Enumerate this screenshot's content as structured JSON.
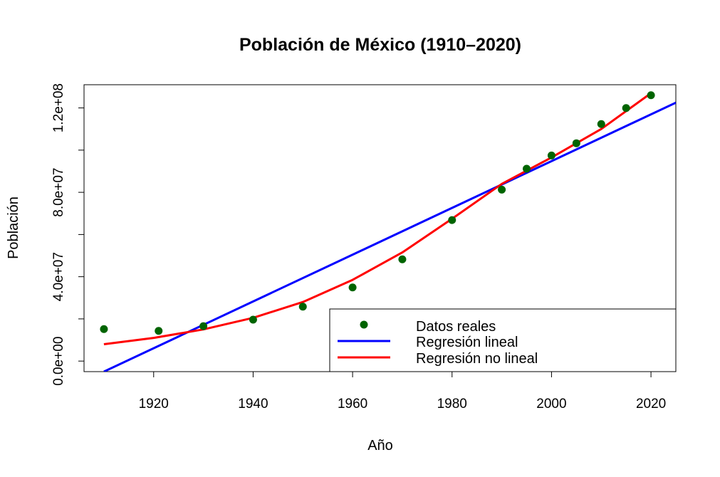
{
  "chart_data": {
    "type": "scatter",
    "title": "Población de México (1910–2020)",
    "xlabel": "Año",
    "ylabel": "Población",
    "xlim": [
      1906,
      2025
    ],
    "ylim": [
      -5000000,
      131000000
    ],
    "x_ticks": [
      1920,
      1940,
      1960,
      1980,
      2000,
      2020
    ],
    "x_tick_labels": [
      "1920",
      "1940",
      "1960",
      "1980",
      "2000",
      "2020"
    ],
    "y_ticks": [
      0,
      20000000,
      40000000,
      60000000,
      80000000,
      100000000,
      120000000
    ],
    "y_tick_labels": [
      "0.0e+00",
      "",
      "4.0e+07",
      "",
      "8.0e+07",
      "",
      "1.2e+08"
    ],
    "grid": false,
    "legend_position": "bottom-right",
    "series": [
      {
        "name": "Datos reales",
        "kind": "points",
        "color": "#006400",
        "x": [
          1910,
          1921,
          1930,
          1940,
          1950,
          1960,
          1970,
          1980,
          1990,
          1995,
          2000,
          2005,
          2010,
          2015,
          2020
        ],
        "y": [
          15160000,
          14330000,
          16550000,
          19650000,
          25790000,
          34920000,
          48230000,
          66850000,
          81250000,
          91160000,
          97480000,
          103260000,
          112340000,
          119940000,
          126010000
        ]
      },
      {
        "name": "Regresión lineal",
        "kind": "line",
        "color": "#0000ff",
        "x": [
          1910,
          2025
        ],
        "y": [
          -5000000,
          122500000
        ]
      },
      {
        "name": "Regresión no lineal",
        "kind": "line",
        "color": "#ff0000",
        "x": [
          1910,
          1920,
          1930,
          1940,
          1950,
          1960,
          1970,
          1980,
          1990,
          2000,
          2010,
          2020
        ],
        "y": [
          8000000,
          11000000,
          15000000,
          20500000,
          28000000,
          38500000,
          51500000,
          67500000,
          84000000,
          96500000,
          110000000,
          127000000
        ]
      }
    ]
  }
}
